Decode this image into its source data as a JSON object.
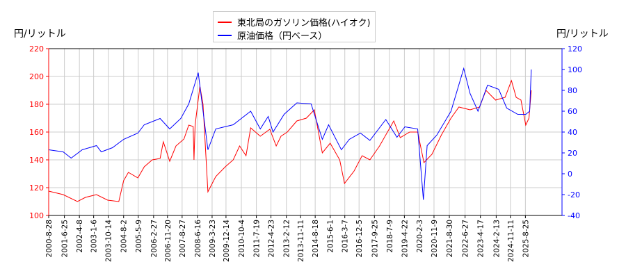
{
  "chart_data": {
    "type": "line",
    "title": "",
    "ylabel_left": "円/リットル",
    "ylabel_right": "円/リットル",
    "ylim_left": [
      100,
      220
    ],
    "ylim_right": [
      -40,
      120
    ],
    "yticks_left": [
      100,
      120,
      140,
      160,
      180,
      200,
      220
    ],
    "yticks_right": [
      -40,
      -20,
      0,
      20,
      40,
      60,
      80,
      100,
      120
    ],
    "xlim": [
      "2000-08-28",
      "2026-02-01"
    ],
    "xticks": [
      "2000-8-28",
      "2001-6-25",
      "2002-4-8",
      "2003-1-6",
      "2003-10-14",
      "2004-8-2",
      "2005-5-9",
      "2006-2-27",
      "2006-11-20",
      "2007-8-27",
      "2008-6-16",
      "2009-3-23",
      "2009-12-14",
      "2010-10-4",
      "2011-7-19",
      "2012-4-23",
      "2013-2-12",
      "2013-11-11",
      "2014-8-18",
      "2015-6-1",
      "2016-3-7",
      "2016-12-5",
      "2017-9-25",
      "2018-7-9",
      "2019-4-22",
      "2020-2-3",
      "2020-11-9",
      "2021-8-30",
      "2022-6-27",
      "2023-4-17",
      "2024-2-13",
      "2024-11-11",
      "2025-8-25"
    ],
    "grid": true,
    "legend_placement": "top-center",
    "series": [
      {
        "name": "東北局のガソリン価格(ハイオク)",
        "axis": "left",
        "color": "#ff0000",
        "points": [
          [
            "2000-08-28",
            117.5
          ],
          [
            "2001-06-01",
            115
          ],
          [
            "2002-03-01",
            110
          ],
          [
            "2002-08-01",
            113
          ],
          [
            "2003-03-01",
            115
          ],
          [
            "2003-10-01",
            111
          ],
          [
            "2004-05-01",
            110
          ],
          [
            "2004-08-01",
            125
          ],
          [
            "2004-11-01",
            131
          ],
          [
            "2005-05-01",
            127
          ],
          [
            "2005-09-01",
            135
          ],
          [
            "2006-02-01",
            140
          ],
          [
            "2006-07-01",
            141
          ],
          [
            "2006-09-01",
            153
          ],
          [
            "2007-01-01",
            139
          ],
          [
            "2007-05-01",
            150
          ],
          [
            "2007-10-01",
            155
          ],
          [
            "2008-01-01",
            165
          ],
          [
            "2008-03-25",
            164
          ],
          [
            "2008-04-10",
            140
          ],
          [
            "2008-05-01",
            165
          ],
          [
            "2008-08-01",
            193
          ],
          [
            "2008-10-01",
            180
          ],
          [
            "2009-01-01",
            117
          ],
          [
            "2009-06-01",
            128
          ],
          [
            "2009-12-01",
            135
          ],
          [
            "2010-05-01",
            140
          ],
          [
            "2010-09-01",
            150
          ],
          [
            "2011-01-01",
            143
          ],
          [
            "2011-04-01",
            163
          ],
          [
            "2011-10-01",
            157
          ],
          [
            "2012-04-01",
            162
          ],
          [
            "2012-08-01",
            150
          ],
          [
            "2012-11-01",
            157
          ],
          [
            "2013-03-01",
            160
          ],
          [
            "2013-09-01",
            168
          ],
          [
            "2014-03-01",
            170
          ],
          [
            "2014-08-01",
            176
          ],
          [
            "2015-01-01",
            145
          ],
          [
            "2015-06-01",
            152
          ],
          [
            "2015-12-01",
            140
          ],
          [
            "2016-03-01",
            123
          ],
          [
            "2016-09-01",
            132
          ],
          [
            "2017-02-01",
            143
          ],
          [
            "2017-07-01",
            140
          ],
          [
            "2018-01-01",
            150
          ],
          [
            "2018-10-01",
            168
          ],
          [
            "2019-02-01",
            156
          ],
          [
            "2019-08-01",
            160
          ],
          [
            "2020-01-01",
            160
          ],
          [
            "2020-05-01",
            138
          ],
          [
            "2020-10-01",
            144
          ],
          [
            "2021-04-01",
            158
          ],
          [
            "2021-10-01",
            170
          ],
          [
            "2022-03-01",
            178
          ],
          [
            "2022-10-01",
            176
          ],
          [
            "2023-04-01",
            178
          ],
          [
            "2023-08-01",
            190
          ],
          [
            "2024-02-01",
            183
          ],
          [
            "2024-08-01",
            185
          ],
          [
            "2024-12-01",
            197
          ],
          [
            "2025-03-01",
            185
          ],
          [
            "2025-06-01",
            183
          ],
          [
            "2025-09-01",
            165
          ],
          [
            "2025-11-01",
            170
          ],
          [
            "2025-12-15",
            190
          ]
        ]
      },
      {
        "name": "原油価格（円ベース）",
        "axis": "right",
        "color": "#0000ff",
        "points": [
          [
            "2000-08-28",
            23
          ],
          [
            "2001-06-01",
            21
          ],
          [
            "2001-11-01",
            15
          ],
          [
            "2002-06-01",
            23
          ],
          [
            "2003-03-01",
            27
          ],
          [
            "2003-06-01",
            21
          ],
          [
            "2004-01-01",
            25
          ],
          [
            "2004-08-01",
            33
          ],
          [
            "2005-05-01",
            39
          ],
          [
            "2005-09-01",
            47
          ],
          [
            "2006-07-01",
            53
          ],
          [
            "2007-01-01",
            43
          ],
          [
            "2007-08-01",
            53
          ],
          [
            "2008-01-01",
            67
          ],
          [
            "2008-07-01",
            97
          ],
          [
            "2009-01-01",
            23
          ],
          [
            "2009-06-01",
            43
          ],
          [
            "2010-05-01",
            47
          ],
          [
            "2011-04-01",
            60
          ],
          [
            "2011-10-01",
            43
          ],
          [
            "2012-03-01",
            55
          ],
          [
            "2012-06-01",
            40
          ],
          [
            "2013-01-01",
            57
          ],
          [
            "2013-09-01",
            68
          ],
          [
            "2014-06-01",
            67
          ],
          [
            "2015-01-01",
            33
          ],
          [
            "2015-05-01",
            47
          ],
          [
            "2016-01-01",
            23
          ],
          [
            "2016-06-01",
            33
          ],
          [
            "2017-01-01",
            39
          ],
          [
            "2017-07-01",
            32
          ],
          [
            "2018-05-01",
            52
          ],
          [
            "2018-12-01",
            35
          ],
          [
            "2019-05-01",
            45
          ],
          [
            "2020-01-01",
            43
          ],
          [
            "2020-04-20",
            -25
          ],
          [
            "2020-07-01",
            27
          ],
          [
            "2021-01-01",
            37
          ],
          [
            "2021-10-01",
            60
          ],
          [
            "2022-06-01",
            101
          ],
          [
            "2022-10-01",
            77
          ],
          [
            "2023-03-01",
            60
          ],
          [
            "2023-09-01",
            85
          ],
          [
            "2024-04-01",
            81
          ],
          [
            "2024-09-01",
            63
          ],
          [
            "2025-04-01",
            57
          ],
          [
            "2025-09-01",
            57
          ],
          [
            "2025-11-15",
            60
          ],
          [
            "2025-12-15",
            100
          ]
        ]
      }
    ]
  }
}
